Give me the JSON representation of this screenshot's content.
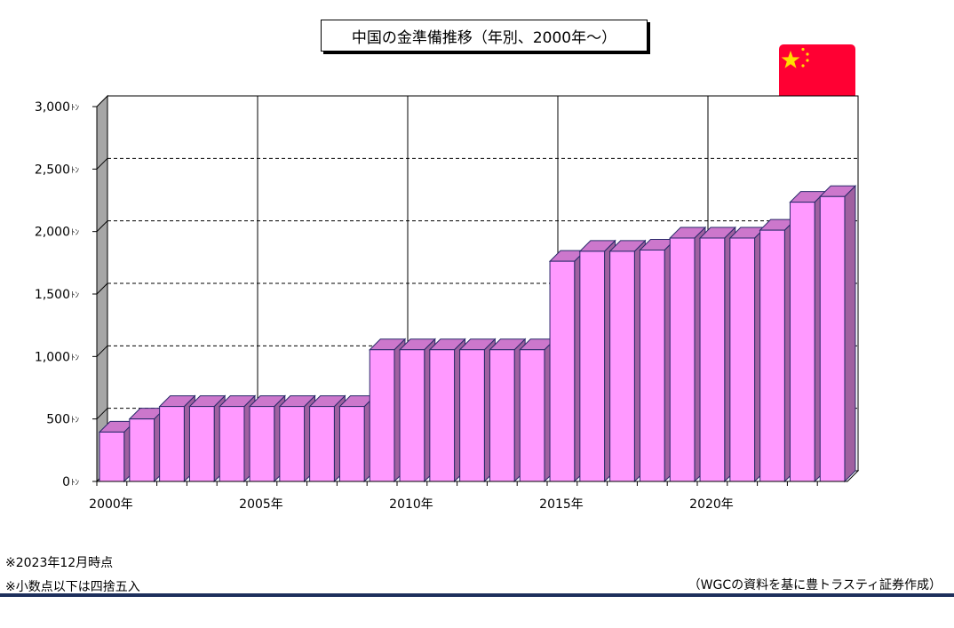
{
  "chart_data": {
    "type": "bar",
    "title": "中国の金準備推移（年別、2000年～）",
    "unit_suffix": "ﾄﾝ",
    "x": [
      2000,
      2001,
      2002,
      2003,
      2004,
      2005,
      2006,
      2007,
      2008,
      2009,
      2010,
      2011,
      2012,
      2013,
      2014,
      2015,
      2016,
      2017,
      2018,
      2019,
      2020,
      2021,
      2022,
      2023,
      2024
    ],
    "xtick_labels": [
      {
        "year": 2000,
        "label": "2000年"
      },
      {
        "year": 2005,
        "label": "2005年"
      },
      {
        "year": 2010,
        "label": "2010年"
      },
      {
        "year": 2015,
        "label": "2015年"
      },
      {
        "year": 2020,
        "label": "2020年"
      }
    ],
    "ytick_labels": [
      {
        "value": 0,
        "label": "0"
      },
      {
        "value": 500,
        "label": "500"
      },
      {
        "value": 1000,
        "label": "1,000"
      },
      {
        "value": 1500,
        "label": "1,500"
      },
      {
        "value": 2000,
        "label": "2,000"
      },
      {
        "value": 2500,
        "label": "2,500"
      },
      {
        "value": 3000,
        "label": "3,000"
      }
    ],
    "values": [
      395,
      500,
      600,
      600,
      600,
      600,
      600,
      600,
      600,
      1054,
      1054,
      1054,
      1054,
      1054,
      1054,
      1762,
      1842,
      1842,
      1852,
      1948,
      1948,
      1948,
      2011,
      2235,
      2280
    ],
    "ylim": [
      0,
      3000
    ],
    "grid": "horizontal dashed, vertical solid every 5 years",
    "colors": {
      "bar_front": "#ff99ff",
      "bar_top": "#cc77cc",
      "bar_side": "#a060a0",
      "edge": "#2a2a6a",
      "left_wall": "#a6a6a6"
    }
  },
  "flag": {
    "icon": "china-flag-icon",
    "colors": {
      "red": "#ff0033",
      "star": "#ffdd00"
    }
  },
  "notes": {
    "note1": "※2023年12月時点",
    "note2": "※小数点以下は四捨五入",
    "source": "（WGCの資料を基に豊トラスティ証券作成）"
  },
  "colors": {
    "rule": "#1d2f5c"
  }
}
